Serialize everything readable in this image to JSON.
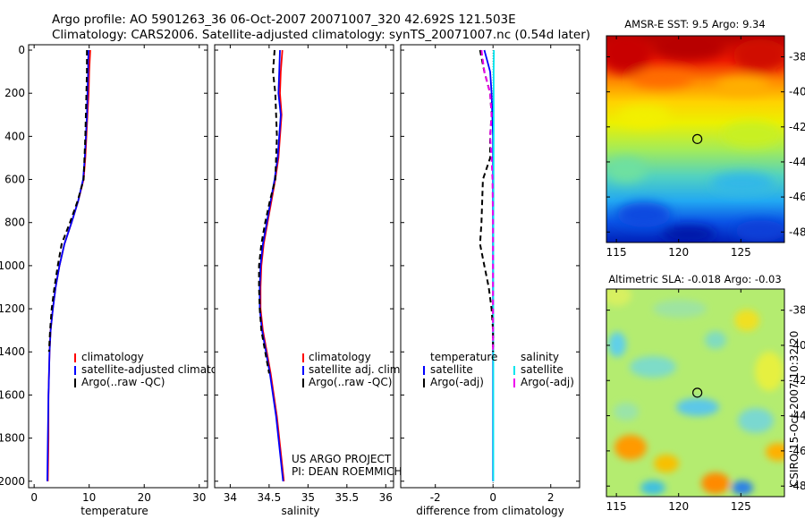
{
  "header": {
    "line1": "Argo profile: AO 5901263_36 06-Oct-2007 20071007_320 42.692S 121.503E",
    "line2": "Climatology: CARS2006. Satellite-adjusted climatology: synTS_20071007.nc (0.54d later)"
  },
  "colors": {
    "climatology": "#ff0000",
    "satellite": "#0000ff",
    "argo": "#000000",
    "salinity_sat": "#00e5ee",
    "salinity_argo": "#ee00ee"
  },
  "chart_data": [
    {
      "id": "temperature",
      "type": "line",
      "xlabel": "temperature",
      "ylabel": "",
      "xlim": [
        -1,
        31.5
      ],
      "ylim": [
        2030,
        -25
      ],
      "xticks": [
        0,
        10,
        20,
        30
      ],
      "yticks": [
        0,
        200,
        400,
        600,
        800,
        1000,
        1200,
        1400,
        1600,
        1800,
        2000
      ],
      "series": [
        {
          "name": "climatology",
          "color": "#ff0000",
          "dash": "",
          "points": [
            [
              10.2,
              0
            ],
            [
              10.1,
              50
            ],
            [
              10.0,
              100
            ],
            [
              9.9,
              200
            ],
            [
              9.7,
              300
            ],
            [
              9.5,
              400
            ],
            [
              9.3,
              500
            ],
            [
              9.0,
              600
            ],
            [
              8.0,
              700
            ],
            [
              6.8,
              800
            ],
            [
              5.5,
              900
            ],
            [
              4.6,
              1000
            ],
            [
              3.9,
              1100
            ],
            [
              3.4,
              1200
            ],
            [
              3.0,
              1300
            ],
            [
              2.8,
              1400
            ],
            [
              2.7,
              1500
            ],
            [
              2.6,
              1600
            ],
            [
              2.6,
              1800
            ],
            [
              2.5,
              2000
            ]
          ]
        },
        {
          "name": "satellite-adjusted climatology",
          "color": "#0000ff",
          "dash": "",
          "points": [
            [
              9.9,
              0
            ],
            [
              9.8,
              50
            ],
            [
              9.8,
              100
            ],
            [
              9.7,
              200
            ],
            [
              9.6,
              300
            ],
            [
              9.4,
              400
            ],
            [
              9.2,
              500
            ],
            [
              8.9,
              600
            ],
            [
              8.0,
              700
            ],
            [
              6.8,
              800
            ],
            [
              5.5,
              900
            ],
            [
              4.6,
              1000
            ],
            [
              3.9,
              1100
            ],
            [
              3.4,
              1200
            ],
            [
              3.0,
              1300
            ],
            [
              2.8,
              1400
            ],
            [
              2.7,
              1500
            ],
            [
              2.6,
              1600
            ],
            [
              2.5,
              1800
            ],
            [
              2.4,
              2000
            ]
          ]
        },
        {
          "name": "Argo(..raw -QC)",
          "color": "#000000",
          "dash": "6,4",
          "points": [
            [
              9.6,
              0
            ],
            [
              9.6,
              100
            ],
            [
              9.5,
              200
            ],
            [
              9.3,
              400
            ],
            [
              9.0,
              600
            ],
            [
              7.9,
              700
            ],
            [
              6.5,
              800
            ],
            [
              5.0,
              900
            ],
            [
              4.3,
              1000
            ],
            [
              3.7,
              1100
            ],
            [
              3.2,
              1200
            ],
            [
              2.9,
              1300
            ],
            [
              2.7,
              1400
            ]
          ]
        }
      ],
      "legend": [
        "climatology",
        "satellite-adjusted climatology",
        "Argo(..raw -QC)"
      ]
    },
    {
      "id": "salinity",
      "type": "line",
      "xlabel": "salinity",
      "xlim": [
        33.8,
        36.1
      ],
      "ylim": [
        2030,
        -25
      ],
      "xticks": [
        34,
        34.5,
        35,
        35.5,
        36
      ],
      "series": [
        {
          "name": "climatology",
          "color": "#ff0000",
          "dash": "",
          "points": [
            [
              34.67,
              0
            ],
            [
              34.65,
              100
            ],
            [
              34.64,
              200
            ],
            [
              34.66,
              300
            ],
            [
              34.62,
              500
            ],
            [
              34.58,
              600
            ],
            [
              34.53,
              700
            ],
            [
              34.48,
              800
            ],
            [
              34.43,
              900
            ],
            [
              34.4,
              1000
            ],
            [
              34.39,
              1100
            ],
            [
              34.39,
              1200
            ],
            [
              34.42,
              1300
            ],
            [
              34.47,
              1400
            ],
            [
              34.52,
              1500
            ],
            [
              34.56,
              1600
            ],
            [
              34.6,
              1700
            ],
            [
              34.63,
              1800
            ],
            [
              34.66,
              1900
            ],
            [
              34.69,
              2000
            ]
          ]
        },
        {
          "name": "satellite adj. clim.",
          "color": "#0000ff",
          "dash": "",
          "points": [
            [
              34.64,
              0
            ],
            [
              34.63,
              100
            ],
            [
              34.62,
              200
            ],
            [
              34.65,
              300
            ],
            [
              34.61,
              500
            ],
            [
              34.57,
              600
            ],
            [
              34.52,
              700
            ],
            [
              34.47,
              800
            ],
            [
              34.42,
              900
            ],
            [
              34.39,
              1000
            ],
            [
              34.38,
              1100
            ],
            [
              34.38,
              1200
            ],
            [
              34.41,
              1300
            ],
            [
              34.46,
              1400
            ],
            [
              34.51,
              1500
            ],
            [
              34.55,
              1600
            ],
            [
              34.59,
              1700
            ],
            [
              34.62,
              1800
            ],
            [
              34.65,
              1900
            ],
            [
              34.68,
              2000
            ]
          ]
        },
        {
          "name": "Argo(..raw -QC)",
          "color": "#000000",
          "dash": "6,4",
          "points": [
            [
              34.57,
              0
            ],
            [
              34.55,
              100
            ],
            [
              34.58,
              200
            ],
            [
              34.6,
              400
            ],
            [
              34.58,
              600
            ],
            [
              34.51,
              700
            ],
            [
              34.45,
              800
            ],
            [
              34.4,
              900
            ],
            [
              34.37,
              1000
            ],
            [
              34.37,
              1100
            ],
            [
              34.38,
              1200
            ],
            [
              34.4,
              1300
            ],
            [
              34.45,
              1400
            ],
            [
              34.5,
              1500
            ]
          ]
        }
      ],
      "legend": [
        "climatology",
        "satellite adj. clim.",
        "Argo(..raw -QC)"
      ],
      "annotations": [
        "US ARGO PROJECT",
        "PI: DEAN ROEMMICH"
      ]
    },
    {
      "id": "difference",
      "type": "line",
      "xlabel": "difference from climatology",
      "xlim": [
        -3.2,
        3.0
      ],
      "ylim": [
        2030,
        -25
      ],
      "xticks": [
        -2,
        0,
        2
      ],
      "series": [
        {
          "name": "temperature satellite",
          "color": "#0000ff",
          "dash": "",
          "points": [
            [
              -0.3,
              0
            ],
            [
              -0.2,
              50
            ],
            [
              -0.1,
              100
            ],
            [
              -0.05,
              200
            ],
            [
              0,
              400
            ],
            [
              0,
              2000
            ]
          ]
        },
        {
          "name": "salinity satellite",
          "color": "#00e5ee",
          "dash": "",
          "points": [
            [
              0.03,
              0
            ],
            [
              0.02,
              100
            ],
            [
              0.02,
              400
            ],
            [
              0.01,
              1000
            ],
            [
              0.01,
              2000
            ]
          ]
        },
        {
          "name": "temperature Argo(-adj)",
          "color": "#000000",
          "dash": "6,4",
          "points": [
            [
              -0.45,
              0
            ],
            [
              -0.3,
              100
            ],
            [
              -0.1,
              200
            ],
            [
              -0.05,
              300
            ],
            [
              -0.1,
              400
            ],
            [
              -0.1,
              500
            ],
            [
              -0.35,
              600
            ],
            [
              -0.4,
              800
            ],
            [
              -0.45,
              900
            ],
            [
              -0.3,
              1000
            ],
            [
              -0.15,
              1100
            ],
            [
              -0.05,
              1200
            ],
            [
              0,
              1300
            ],
            [
              0,
              1400
            ]
          ]
        },
        {
          "name": "salinity Argo(-adj)",
          "color": "#ee00ee",
          "dash": "6,4",
          "points": [
            [
              -0.4,
              0
            ],
            [
              -0.3,
              100
            ],
            [
              -0.1,
              200
            ],
            [
              -0.05,
              300
            ],
            [
              -0.1,
              400
            ],
            [
              -0.05,
              500
            ],
            [
              -0.02,
              600
            ],
            [
              0,
              800
            ],
            [
              0,
              1400
            ]
          ]
        }
      ],
      "legend": {
        "temperature_header": "temperature",
        "salinity_header": "salinity",
        "temperature_items": [
          "satellite",
          "Argo(-adj)"
        ],
        "salinity_items": [
          "satellite",
          "Argo(-adj)"
        ]
      }
    },
    {
      "id": "sst-map",
      "type": "heatmap",
      "title": "AMSR-E SST: 9.5 Argo: 9.34",
      "xlim": [
        114.2,
        128.5
      ],
      "ylim": [
        -48.6,
        -36.8
      ],
      "xticks": [
        115,
        120,
        125
      ],
      "yticks": [
        -38,
        -40,
        -42,
        -44,
        -46,
        -48
      ],
      "marker": {
        "lon": 121.503,
        "lat": -42.692
      }
    },
    {
      "id": "sla-map",
      "type": "heatmap",
      "title": "Altimetric SLA: -0.018 Argo: -0.03",
      "xlim": [
        114.2,
        128.5
      ],
      "ylim": [
        -48.6,
        -36.8
      ],
      "xticks": [
        115,
        120,
        125
      ],
      "yticks": [
        -38,
        -40,
        -42,
        -44,
        -46,
        -48
      ],
      "marker": {
        "lon": 121.503,
        "lat": -42.692
      }
    }
  ],
  "footer": {
    "stamp": "CSIRO 15-Oct-2007 10:32:20"
  }
}
